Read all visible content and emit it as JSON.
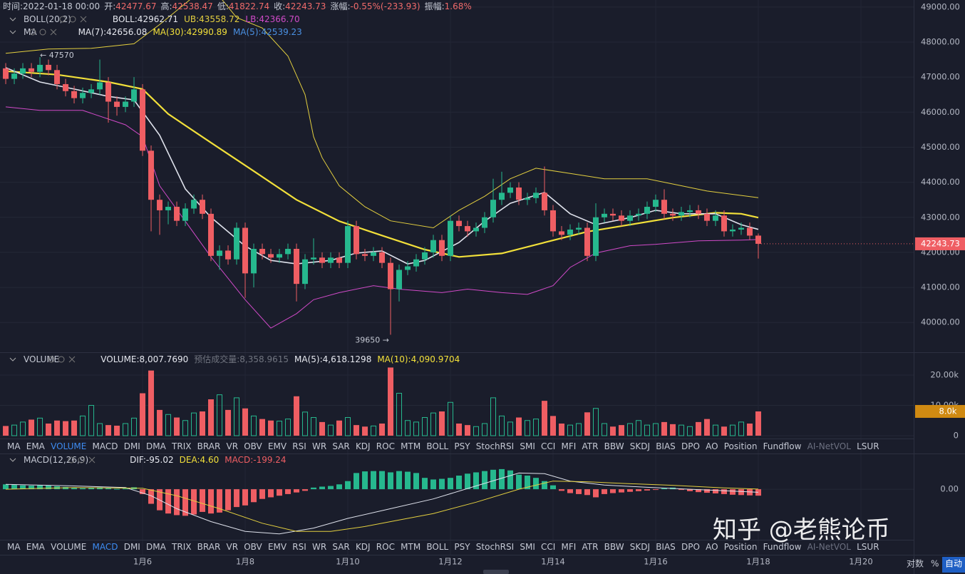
{
  "header": [
    {
      "label": "时间:",
      "value": "2022-01-18 00:00"
    },
    {
      "label": "开:",
      "value": "42477.67"
    },
    {
      "label": "高:",
      "value": "42538.47"
    },
    {
      "label": "低:",
      "value": "41822.74"
    },
    {
      "label": "收:",
      "value": "42243.73"
    },
    {
      "label": "涨幅:",
      "value": "-0.55%(-233.93)"
    },
    {
      "label": "振幅:",
      "value": "1.68%"
    }
  ],
  "ui": {
    "tabs": [
      "MA",
      "EMA",
      "VOLUME",
      "MACD",
      "DMI",
      "DMA",
      "TRIX",
      "BRAR",
      "VR",
      "OBV",
      "EMV",
      "RSI",
      "WR",
      "SAR",
      "KDJ",
      "ROC",
      "MTM",
      "BOLL",
      "PSY",
      "StochRSI",
      "SMI",
      "CCI",
      "MFI",
      "ATR",
      "BBW",
      "SKDJ",
      "BIAS",
      "DPO",
      "AO",
      "Position",
      "Fundflow",
      "AI-NetVOL",
      "LSUR"
    ],
    "watermark": "知乎 @老熊论币",
    "log_button": "对数",
    "percent_button": "%",
    "auto_button": "自动"
  },
  "chart_data": [
    {
      "type": "candlestick",
      "legend": [
        [
          "BOLL(20,2)",
          "BOLL:42962.71",
          "UB:43558.72",
          "LB:42366.70"
        ],
        [
          "MA",
          "MA(7):42656.08",
          "MA(30):42990.89",
          "MA(5):42539.23"
        ]
      ],
      "annotations": [
        "← 47570",
        "39650 →"
      ],
      "up_color": "#26b88e",
      "down_color": "#ef5e63",
      "grid": true,
      "xlim": [
        -0.67,
        106.17
      ],
      "xticks": [
        {
          "value": 16,
          "label": "1月6"
        },
        {
          "value": 28,
          "label": "1月8"
        },
        {
          "value": 40,
          "label": "1月10"
        },
        {
          "value": 52,
          "label": "1月12"
        },
        {
          "value": 64,
          "label": "1月14"
        },
        {
          "value": 76,
          "label": "1月16"
        },
        {
          "value": 88,
          "label": "1月18"
        },
        {
          "value": 100,
          "label": "1月20"
        }
      ],
      "ylim": [
        39150,
        49200
      ],
      "yticks": [
        {
          "value": 40000,
          "label": "40000.00"
        },
        {
          "value": 41000,
          "label": "41000.00"
        },
        {
          "value": 42000,
          "label": "42000.00"
        },
        {
          "value": 43000,
          "label": "43000.00"
        },
        {
          "value": 44000,
          "label": "44000.00"
        },
        {
          "value": 45000,
          "label": "45000.00"
        },
        {
          "value": 46000,
          "label": "46000.00"
        },
        {
          "value": 47000,
          "label": "47000.00"
        },
        {
          "value": 48000,
          "label": "48000.00"
        },
        {
          "value": 49000,
          "label": "49000.00"
        }
      ],
      "open": [
        47250,
        46950,
        47100,
        47250,
        47150,
        47350,
        47200,
        46800,
        46600,
        46400,
        46550,
        46650,
        46850,
        46300,
        46150,
        46300,
        46650,
        44900,
        43500,
        43200,
        43300,
        42900,
        43250,
        43500,
        43100,
        41900,
        42050,
        41800,
        42700,
        41400,
        42100,
        41950,
        41850,
        41950,
        42100,
        41100,
        41800,
        41850,
        41700,
        41850,
        41700,
        42750,
        41950,
        41900,
        42000,
        41700,
        40950,
        41500,
        41600,
        41800,
        42000,
        42350,
        41900,
        42900,
        42750,
        42600,
        42700,
        43000,
        43500,
        43700,
        43850,
        43500,
        43550,
        43700,
        43200,
        42600,
        42500,
        42650,
        42700,
        41900,
        43000,
        43100,
        43050,
        42900,
        43050,
        43100,
        43300,
        43500,
        43100,
        43050,
        43150,
        43200,
        43100,
        42900,
        43050,
        42600,
        42650,
        42700,
        42477.67
      ],
      "high": [
        47400,
        47250,
        47400,
        47400,
        47570,
        47500,
        47350,
        46950,
        46750,
        46700,
        46800,
        47500,
        47000,
        46450,
        46450,
        47000,
        46800,
        45050,
        43650,
        43450,
        43450,
        43400,
        43650,
        43650,
        43250,
        42200,
        42200,
        42850,
        42850,
        42250,
        42250,
        42100,
        42100,
        42250,
        42250,
        41950,
        42400,
        42000,
        42000,
        42000,
        42900,
        42900,
        42100,
        42150,
        42150,
        41850,
        41650,
        41750,
        41950,
        42150,
        42500,
        42500,
        43050,
        43050,
        42900,
        42850,
        43150,
        44100,
        44300,
        44000,
        44000,
        43700,
        43850,
        44450,
        43350,
        42750,
        42800,
        42850,
        42850,
        43400,
        43250,
        43250,
        43200,
        43200,
        43250,
        43450,
        43650,
        43800,
        43250,
        43300,
        43350,
        43350,
        43250,
        43200,
        43200,
        42800,
        42850,
        42850,
        42538.47
      ],
      "low": [
        46800,
        46800,
        46950,
        47000,
        47000,
        47050,
        46650,
        46450,
        46250,
        46250,
        46400,
        46500,
        45700,
        45900,
        46000,
        46150,
        44750,
        42600,
        42500,
        42800,
        42750,
        42750,
        43100,
        42950,
        41750,
        41500,
        41650,
        41650,
        40700,
        41000,
        41800,
        41700,
        41700,
        41800,
        40600,
        40950,
        41650,
        41550,
        41550,
        41550,
        41550,
        41800,
        41750,
        41750,
        41550,
        39650,
        40600,
        41350,
        41450,
        41650,
        41850,
        41750,
        41750,
        42600,
        42450,
        42450,
        42550,
        42850,
        43350,
        43550,
        43350,
        43350,
        43400,
        43050,
        42450,
        42350,
        42350,
        42500,
        41750,
        41750,
        42850,
        42900,
        42750,
        42750,
        42900,
        42950,
        43150,
        42950,
        42900,
        42900,
        43000,
        42950,
        42750,
        42750,
        42450,
        42450,
        42500,
        42350,
        41822.74
      ],
      "close": [
        46950,
        47100,
        47250,
        47150,
        47350,
        47200,
        46800,
        46600,
        46400,
        46550,
        46650,
        46850,
        46300,
        46150,
        46300,
        46650,
        44900,
        43500,
        43200,
        43300,
        42900,
        43250,
        43500,
        43100,
        41900,
        42050,
        41800,
        42700,
        41400,
        42100,
        41950,
        41850,
        41950,
        42100,
        41100,
        41800,
        41850,
        41700,
        41850,
        41700,
        42750,
        41950,
        41900,
        42000,
        41700,
        40950,
        41500,
        41600,
        41800,
        42000,
        42350,
        41900,
        42900,
        42750,
        42600,
        42700,
        43000,
        43500,
        43700,
        43850,
        43500,
        43550,
        43700,
        43200,
        42600,
        42500,
        42650,
        42700,
        41900,
        43000,
        43100,
        43050,
        42900,
        43050,
        43100,
        43300,
        43500,
        43100,
        43050,
        43150,
        43200,
        43100,
        42900,
        43050,
        42600,
        42650,
        42700,
        42477.67,
        42243.73
      ],
      "lines": [
        {
          "color": "#e3cf3f",
          "width": 1,
          "x": [
            0,
            5,
            10,
            15,
            18,
            20,
            22,
            25,
            27,
            30,
            33,
            35,
            36,
            37,
            39,
            42,
            45,
            50,
            53,
            56,
            59,
            62,
            66,
            70,
            75,
            79,
            82,
            88
          ],
          "values": [
            47680,
            47800,
            47820,
            47950,
            48500,
            48900,
            49300,
            49300,
            48700,
            48400,
            47600,
            46500,
            45300,
            44700,
            43900,
            43300,
            42900,
            42700,
            43200,
            43600,
            44100,
            44400,
            44250,
            44100,
            44100,
            43900,
            43750,
            43558.72
          ]
        },
        {
          "color": "#d04ac8",
          "width": 1,
          "x": [
            0,
            4,
            9,
            14,
            16,
            18,
            21,
            24,
            28,
            31,
            34,
            36,
            39,
            43,
            46,
            51,
            54,
            58,
            61,
            64,
            66,
            69,
            73,
            76,
            81,
            86,
            88
          ],
          "values": [
            46150,
            46050,
            46050,
            45640,
            45300,
            43900,
            42890,
            41870,
            40650,
            39840,
            40250,
            40650,
            40850,
            41050,
            40950,
            40850,
            40950,
            40850,
            40800,
            41050,
            41570,
            41980,
            42190,
            42230,
            42330,
            42350,
            42366.7
          ]
        },
        {
          "color": "#f2e03a",
          "width": 2.2,
          "x": [
            0,
            6,
            12,
            16,
            19,
            24,
            29,
            34,
            39,
            44,
            49,
            53,
            58,
            63,
            68,
            73,
            78,
            83,
            86,
            88
          ],
          "values": [
            47170,
            47070,
            46860,
            46660,
            45950,
            45130,
            44320,
            43500,
            42890,
            42480,
            42080,
            41870,
            41970,
            42280,
            42590,
            42790,
            42990,
            43130,
            43100,
            42990.89
          ]
        },
        {
          "color": "#dfe2ec",
          "width": 1.6,
          "x": [
            0,
            4,
            8,
            12,
            15,
            18,
            21,
            24,
            28,
            31,
            34,
            38,
            41,
            44,
            47,
            49,
            53,
            56,
            59,
            63,
            66,
            69,
            73,
            76,
            79,
            83,
            86,
            88
          ],
          "values": [
            47270,
            46860,
            46660,
            46450,
            46350,
            45340,
            43810,
            43000,
            42180,
            41770,
            41670,
            41770,
            41980,
            42040,
            41670,
            41770,
            42280,
            42890,
            43400,
            43710,
            43100,
            42790,
            42990,
            43200,
            43100,
            43100,
            42790,
            42656.08
          ]
        }
      ]
    },
    {
      "type": "volume",
      "legend": [
        "VOLUME",
        "VOLUME:8,007.7690",
        "预估成交量:8,358.9615",
        "MA(5):4,618.1298",
        "MA(10):4,090.9704"
      ],
      "ylim": [
        -940,
        27300
      ],
      "yticks": [
        0,
        {
          "value": 10000,
          "label": "10.00k"
        },
        {
          "value": 20000,
          "label": "20.00k"
        }
      ],
      "current_tag": {
        "value": 8007.769,
        "label": "8.0k"
      },
      "values": [
        3200,
        3500,
        4500,
        5300,
        5800,
        4000,
        5000,
        4800,
        5000,
        6500,
        10000,
        4000,
        3500,
        3300,
        4000,
        5800,
        14000,
        21500,
        8500,
        7000,
        6000,
        5000,
        7500,
        8000,
        12000,
        13500,
        8500,
        12500,
        9000,
        6500,
        5500,
        5000,
        4800,
        5500,
        13000,
        7800,
        6000,
        4500,
        3500,
        5000,
        6000,
        3500,
        3000,
        3200,
        4000,
        22500,
        14000,
        5000,
        4500,
        6000,
        7500,
        8000,
        11000,
        4000,
        3500,
        3000,
        4000,
        12500,
        6500,
        4500,
        6000,
        5000,
        5500,
        11500,
        6500,
        4000,
        3500,
        4000,
        7700,
        9000,
        4000,
        3000,
        3500,
        4000,
        5000,
        3500,
        4000,
        4500,
        3800,
        3500,
        3000,
        4500,
        5500,
        3500,
        3000,
        3500,
        4500,
        4000,
        8007.769
      ]
    },
    {
      "type": "macd",
      "legend": [
        "MACD(12,26,9)",
        "DIF:-95.02",
        "DEA:4.60",
        "MACD:-199.24"
      ],
      "ylim": [
        -1560,
        1080
      ],
      "yticks": [
        {
          "value": 0,
          "label": "0.00"
        }
      ],
      "values": [
        150,
        140,
        120,
        110,
        130,
        120,
        90,
        70,
        40,
        30,
        40,
        60,
        30,
        10,
        20,
        60,
        -150,
        -450,
        -650,
        -750,
        -800,
        -820,
        -780,
        -700,
        -750,
        -720,
        -650,
        -550,
        -500,
        -400,
        -300,
        -250,
        -200,
        -150,
        -100,
        -50,
        50,
        80,
        100,
        150,
        250,
        500,
        550,
        560,
        560,
        520,
        560,
        540,
        500,
        350,
        300,
        320,
        350,
        420,
        480,
        520,
        560,
        600,
        620,
        580,
        450,
        420,
        350,
        250,
        120,
        -50,
        -120,
        -150,
        -180,
        -250,
        -150,
        -120,
        -100,
        -80,
        -60,
        -40,
        -20,
        30,
        50,
        -20,
        -60,
        -90,
        -110,
        -130,
        -150,
        -170,
        -180,
        -190,
        -199.24
      ],
      "lines": [
        {
          "color": "#dfe2ec",
          "width": 1,
          "x": [
            0,
            8,
            14,
            17,
            20,
            24,
            28,
            32,
            36,
            40,
            45,
            50,
            55,
            60,
            63,
            66,
            70,
            75,
            80,
            85,
            88
          ],
          "values": [
            150,
            100,
            50,
            -200,
            -600,
            -1000,
            -1300,
            -1380,
            -1200,
            -900,
            -600,
            -300,
            100,
            500,
            480,
            250,
            130,
            60,
            0,
            -60,
            -95.02
          ]
        },
        {
          "color": "#e3cf3f",
          "width": 1,
          "x": [
            0,
            8,
            16,
            20,
            25,
            30,
            34,
            38,
            42,
            46,
            50,
            55,
            60,
            64,
            68,
            72,
            78,
            84,
            88
          ],
          "values": [
            0,
            50,
            30,
            -200,
            -600,
            -1050,
            -1300,
            -1300,
            -1150,
            -950,
            -750,
            -400,
            0,
            250,
            230,
            180,
            120,
            40,
            4.6
          ]
        }
      ]
    }
  ]
}
